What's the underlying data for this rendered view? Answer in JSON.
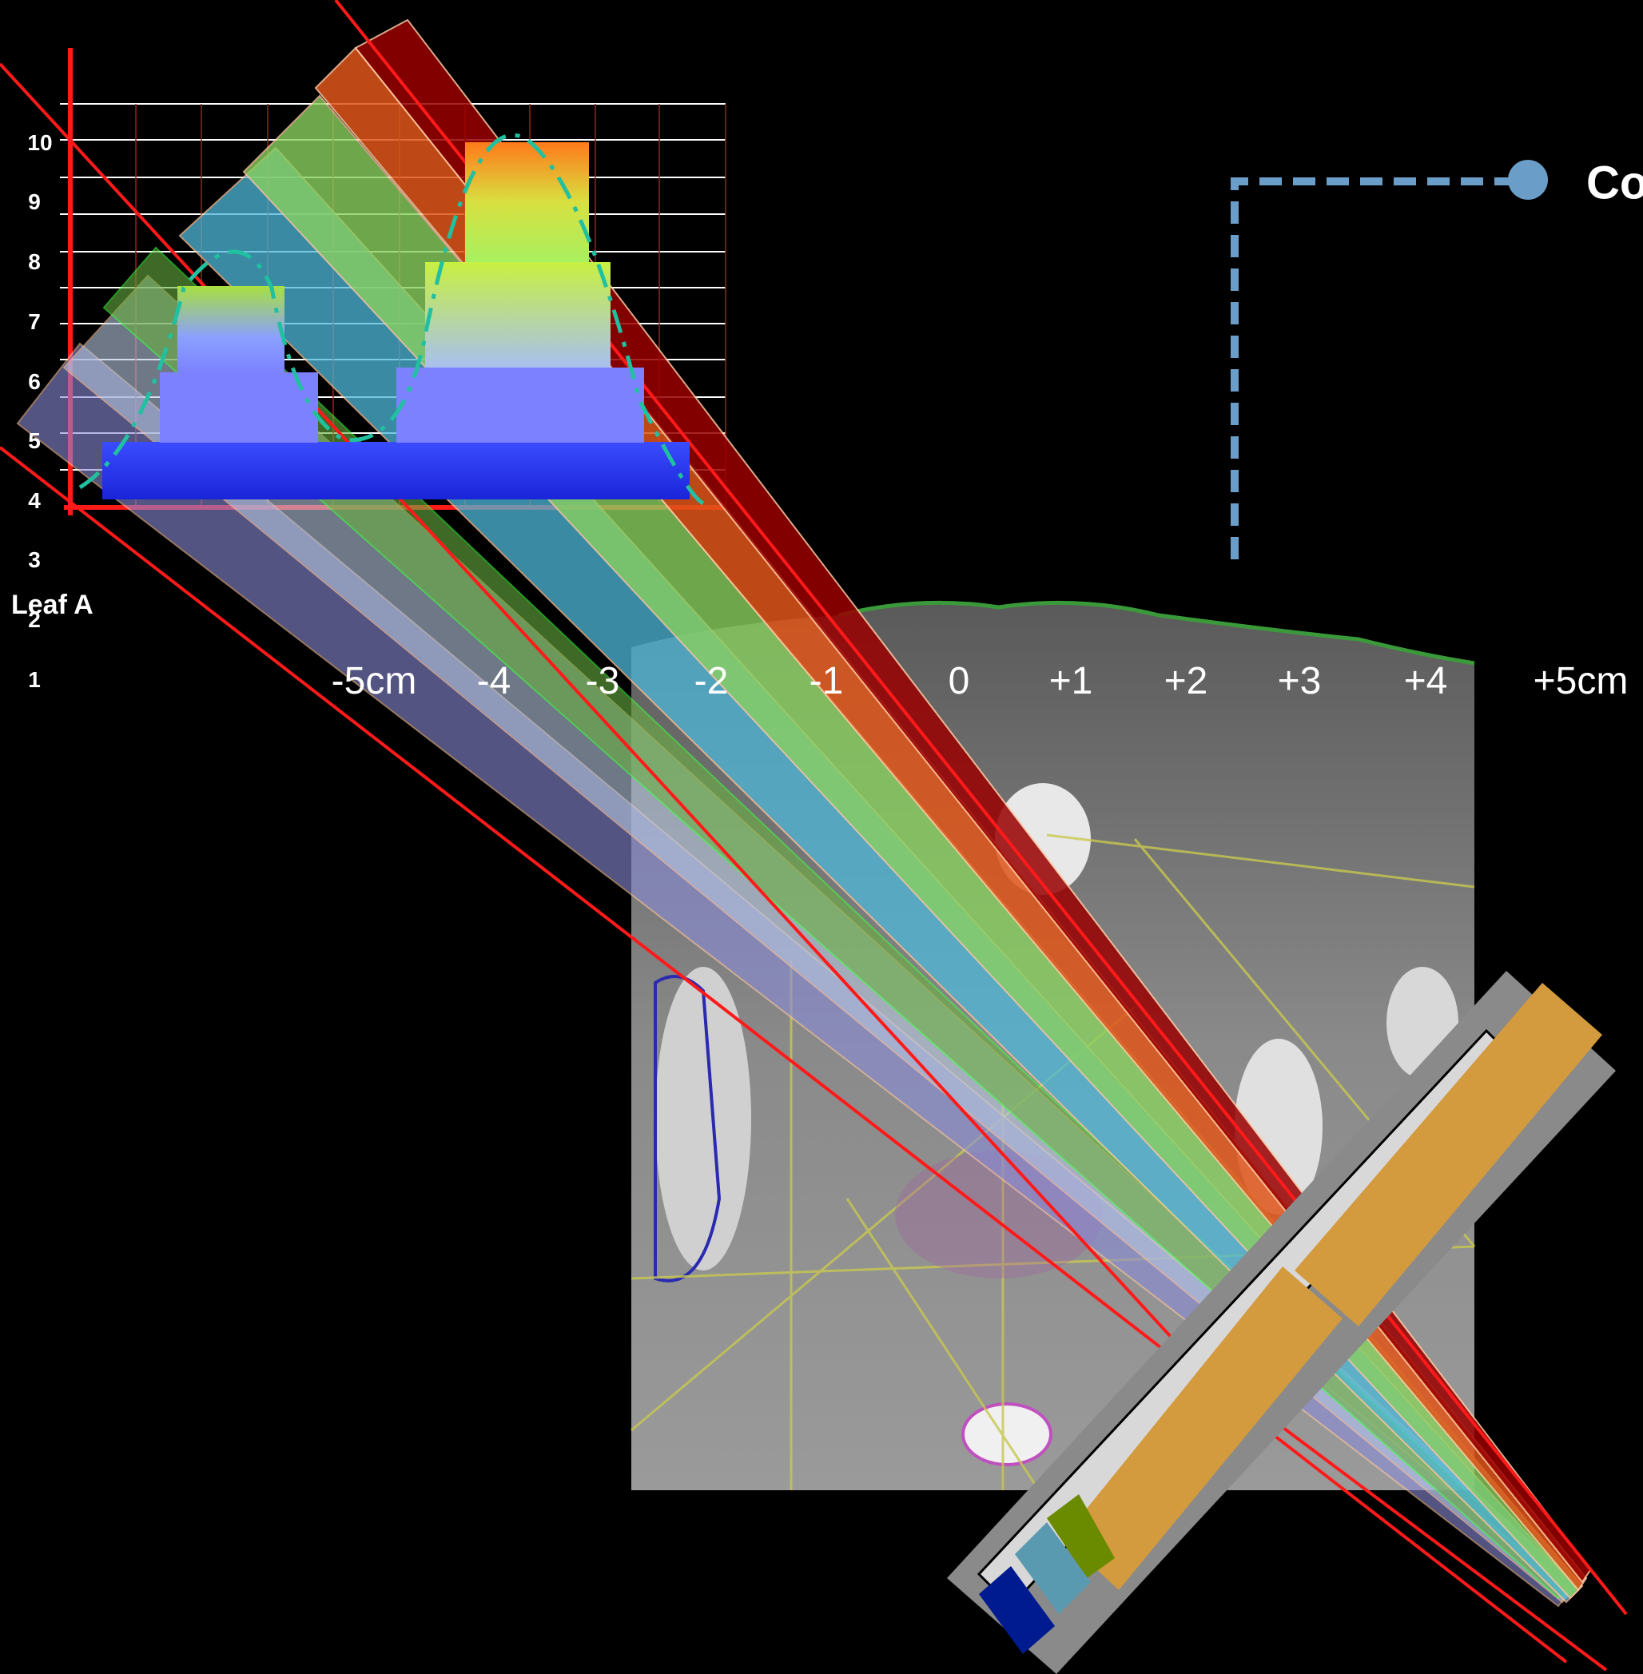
{
  "labels": {
    "leaf": "Leaf A",
    "legend_partial": "Co"
  },
  "y_ticks": [
    "10",
    "9",
    "8",
    "7",
    "6",
    "5",
    "4",
    "3",
    "2",
    "1"
  ],
  "x_ticks": [
    "-5cm",
    "-4",
    "-3",
    "-2",
    "-1",
    "0",
    "+1",
    "+2",
    "+3",
    "+4",
    "+5cm"
  ],
  "colors": {
    "background": "#000000",
    "axis": "#ff1a1a",
    "legend_marker": "#6a9ec8",
    "leaf_block": "#d39a3e",
    "beam_dark_red": "#9a0000",
    "beam_orange": "#e0561a",
    "beam_green": "#8ad060",
    "beam_cyan": "#4cb8d8",
    "beam_lavender": "#8a8cd8"
  },
  "icons": [
    "legend-dot-icon"
  ]
}
